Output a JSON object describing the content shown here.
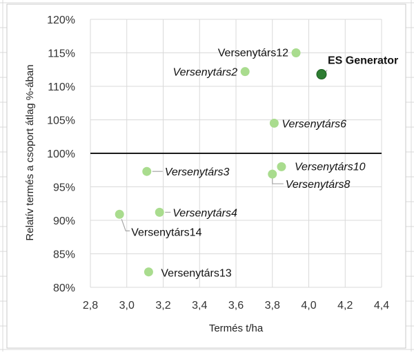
{
  "chart_data": {
    "type": "scatter",
    "title": "",
    "xlabel": "Termés t/ha",
    "ylabel": "Relatív termés a csoport átlag %-ában",
    "xlim": [
      2.8,
      4.4
    ],
    "ylim": [
      80,
      120
    ],
    "x_ticks": [
      2.8,
      3.0,
      3.2,
      3.4,
      3.6,
      3.8,
      4.0,
      4.2,
      4.4
    ],
    "x_tick_labels": [
      "2,8",
      "3,0",
      "3,2",
      "3,4",
      "3,6",
      "3,8",
      "4,0",
      "4,2",
      "4,4"
    ],
    "y_ticks": [
      80,
      85,
      90,
      95,
      100,
      105,
      110,
      115,
      120
    ],
    "y_tick_labels": [
      "80%",
      "85%",
      "90%",
      "95%",
      "100%",
      "105%",
      "110%",
      "115%",
      "120%"
    ],
    "grid": true,
    "reference_line_y": 100,
    "colors": {
      "competitor": "#a9dc8e",
      "highlight": "#2e7d32",
      "reference": "#1a1a1a"
    },
    "points": [
      {
        "label": "ES Generator",
        "x": 4.07,
        "y": 111.8,
        "highlight": true,
        "style": "bold"
      },
      {
        "label": "Versenytárs12",
        "x": 3.93,
        "y": 115.0,
        "style": "normal"
      },
      {
        "label": "Versenytárs2",
        "x": 3.65,
        "y": 112.2,
        "style": "italic"
      },
      {
        "label": "Versenytárs6",
        "x": 3.81,
        "y": 104.5,
        "style": "italic"
      },
      {
        "label": "Versenytárs10",
        "x": 3.85,
        "y": 98.0,
        "style": "italic"
      },
      {
        "label": "Versenytárs8",
        "x": 3.8,
        "y": 96.9,
        "style": "italic"
      },
      {
        "label": "Versenytárs3",
        "x": 3.11,
        "y": 97.3,
        "style": "italic"
      },
      {
        "label": "Versenytárs4",
        "x": 3.18,
        "y": 91.2,
        "style": "italic"
      },
      {
        "label": "Versenytárs14",
        "x": 2.96,
        "y": 90.9,
        "style": "normal"
      },
      {
        "label": "Versenytárs13",
        "x": 3.12,
        "y": 82.3,
        "style": "normal"
      }
    ]
  }
}
